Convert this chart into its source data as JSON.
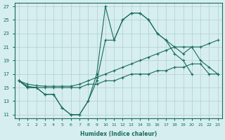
{
  "xlabel": "Humidex (Indice chaleur)",
  "background_color": "#d6eef0",
  "grid_color": "#b0cdd0",
  "line_color": "#1a6b5e",
  "xlim": [
    -0.5,
    23.5
  ],
  "ylim": [
    10.5,
    27.5
  ],
  "xticks": [
    0,
    1,
    2,
    3,
    4,
    5,
    6,
    7,
    8,
    9,
    10,
    11,
    12,
    13,
    14,
    15,
    16,
    17,
    18,
    19,
    20,
    21,
    22,
    23
  ],
  "yticks": [
    11,
    13,
    15,
    17,
    19,
    21,
    23,
    25,
    27
  ],
  "s1_x": [
    0,
    1,
    2,
    3,
    4,
    5,
    6,
    7,
    8,
    9,
    10,
    11,
    12,
    13,
    14,
    15,
    16,
    17,
    18,
    19,
    20
  ],
  "s1_y": [
    16,
    15,
    15,
    14,
    14,
    12,
    11,
    11,
    13,
    17,
    27,
    22,
    25,
    26,
    26,
    25,
    23,
    22,
    20,
    19,
    17
  ],
  "s2_x": [
    0,
    1,
    2,
    3,
    4,
    5,
    6,
    7,
    8,
    9,
    10,
    11,
    12,
    13,
    14,
    15,
    16,
    17,
    18,
    19,
    20,
    21,
    22,
    23
  ],
  "s2_y": [
    16,
    15,
    15,
    14,
    14,
    12,
    11,
    11,
    13,
    16,
    22,
    22,
    25,
    26,
    26,
    25,
    23,
    22,
    21,
    20,
    21,
    19,
    18,
    17
  ],
  "s3_x": [
    0,
    1,
    2,
    3,
    4,
    5,
    6,
    7,
    8,
    9,
    10,
    11,
    12,
    13,
    14,
    15,
    16,
    17,
    18,
    19,
    20,
    21,
    22,
    23
  ],
  "s3_y": [
    16,
    15.5,
    15.3,
    15.2,
    15.2,
    15.2,
    15.2,
    15.5,
    16,
    16.5,
    17,
    17.5,
    18,
    18.5,
    19,
    19.5,
    20,
    20.5,
    21,
    21,
    21,
    21,
    21.5,
    22
  ],
  "s4_x": [
    0,
    1,
    2,
    3,
    4,
    5,
    6,
    7,
    8,
    9,
    10,
    11,
    12,
    13,
    14,
    15,
    16,
    17,
    18,
    19,
    20,
    21,
    22,
    23
  ],
  "s4_y": [
    16,
    15.2,
    15,
    15,
    15,
    15,
    15,
    15,
    15.5,
    15.5,
    16,
    16,
    16.5,
    17,
    17,
    17,
    17.5,
    17.5,
    18,
    18,
    18.5,
    18.5,
    17,
    17
  ]
}
